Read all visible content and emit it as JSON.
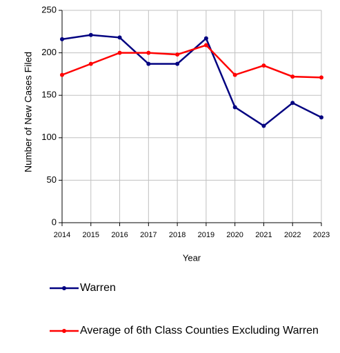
{
  "chart_data": {
    "type": "line",
    "y_label": "Number of New Cases Filed",
    "x_label": "Year",
    "x": [
      2014,
      2015,
      2016,
      2017,
      2018,
      2019,
      2020,
      2021,
      2022,
      2023
    ],
    "xlim": [
      2014,
      2023
    ],
    "xticks": [
      2014,
      2015,
      2016,
      2017,
      2018,
      2019,
      2020,
      2021,
      2022,
      2023
    ],
    "ylim": [
      0,
      250
    ],
    "yticks": [
      0,
      50,
      100,
      150,
      200,
      250
    ],
    "grid": true,
    "series": [
      {
        "name": "Warren",
        "color": "#000080",
        "values": [
          216,
          221,
          218,
          187,
          187,
          217,
          136,
          114,
          141,
          124
        ]
      },
      {
        "name": "Average of 6th Class Counties Excluding Warren",
        "color": "#ff0000",
        "values": [
          174,
          187,
          200,
          200,
          198,
          209,
          174,
          185,
          172,
          171
        ]
      }
    ]
  }
}
